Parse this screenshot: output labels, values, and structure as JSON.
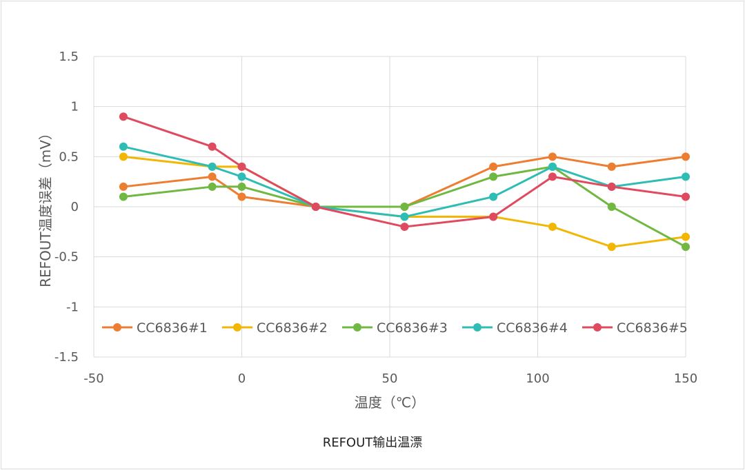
{
  "chart_data": {
    "type": "line",
    "title": "",
    "xlabel": "温度（℃）",
    "ylabel": "REFOUT温度误差（mV）",
    "xlim": [
      -50,
      150
    ],
    "ylim": [
      -1.5,
      1.5
    ],
    "x_ticks": [
      -50,
      0,
      50,
      100,
      150
    ],
    "y_ticks": [
      1.5,
      1,
      0.5,
      0,
      -0.5,
      -1,
      -1.5
    ],
    "x_tick_labels": [
      "-50",
      "0",
      "50",
      "100",
      "150"
    ],
    "y_tick_labels": [
      "1.5",
      "1",
      "0.5",
      "0",
      "-0.5",
      "-1",
      "-1.5"
    ],
    "grid": true,
    "legend_position": "bottom",
    "x": [
      -40,
      -10,
      0,
      25,
      55,
      85,
      105,
      125,
      150
    ],
    "series": [
      {
        "name": "CC6836#1",
        "color": "#ED7D31",
        "values": [
          0.2,
          0.3,
          0.1,
          0,
          0,
          0.4,
          0.5,
          0.4,
          0.5
        ]
      },
      {
        "name": "CC6836#2",
        "color": "#F2B705",
        "values": [
          0.5,
          0.4,
          0.4,
          0,
          -0.1,
          -0.1,
          -0.2,
          -0.4,
          -0.3
        ]
      },
      {
        "name": "CC6836#3",
        "color": "#70B842",
        "values": [
          0.1,
          0.2,
          0.2,
          0,
          0,
          0.3,
          0.4,
          0,
          -0.4
        ]
      },
      {
        "name": "CC6836#4",
        "color": "#2EBDB4",
        "values": [
          0.6,
          0.4,
          0.3,
          0,
          -0.1,
          0.1,
          0.4,
          0.2,
          0.3
        ]
      },
      {
        "name": "CC6836#5",
        "color": "#E04A5F",
        "values": [
          0.9,
          0.6,
          0.4,
          0,
          -0.2,
          -0.1,
          0.3,
          0.2,
          0.1
        ]
      }
    ]
  },
  "caption": "REFOUT输出温漂"
}
